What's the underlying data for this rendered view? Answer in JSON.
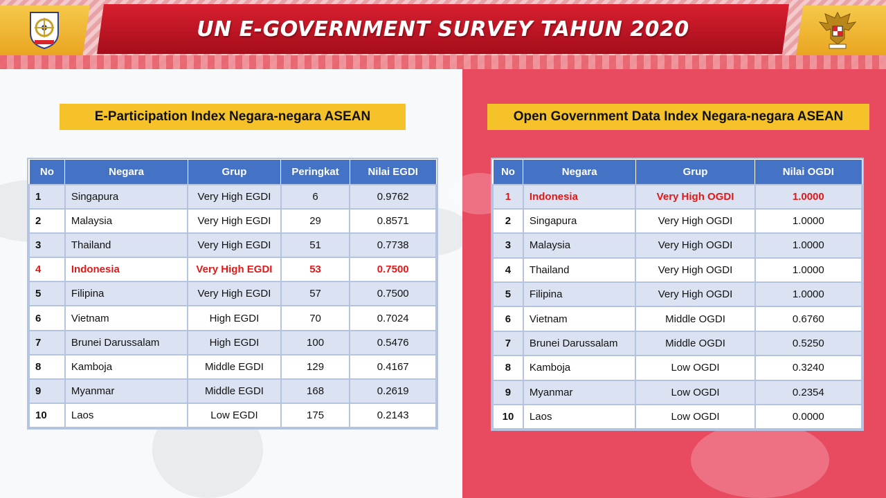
{
  "header": {
    "title": "UN E-GOVERNMENT SURVEY TAHUN 2020",
    "left_logo": "naval-emblem-icon",
    "right_logo": "garuda-emblem-icon",
    "colors": {
      "banner": "#c8142a",
      "gold": "#f6c94a"
    }
  },
  "left": {
    "title": "E-Participation Index Negara-negara ASEAN",
    "columns": [
      "No",
      "Negara",
      "Grup",
      "Peringkat",
      "Nilai EGDI"
    ],
    "highlight_color": "#e01818",
    "rows": [
      {
        "no": "1",
        "country": "Singapura",
        "group": "Very High EGDI",
        "rank": "6",
        "value": "0.9762"
      },
      {
        "no": "2",
        "country": "Malaysia",
        "group": "Very High EGDI",
        "rank": "29",
        "value": "0.8571"
      },
      {
        "no": "3",
        "country": "Thailand",
        "group": "Very High EGDI",
        "rank": "51",
        "value": "0.7738"
      },
      {
        "no": "4",
        "country": "Indonesia",
        "group": "Very High EGDI",
        "rank": "53",
        "value": "0.7500"
      },
      {
        "no": "5",
        "country": "Filipina",
        "group": "Very High EGDI",
        "rank": "57",
        "value": "0.7500"
      },
      {
        "no": "6",
        "country": "Vietnam",
        "group": "High EGDI",
        "rank": "70",
        "value": "0.7024"
      },
      {
        "no": "7",
        "country": "Brunei Darussalam",
        "group": "High EGDI",
        "rank": "100",
        "value": "0.5476"
      },
      {
        "no": "8",
        "country": "Kamboja",
        "group": "Middle EGDI",
        "rank": "129",
        "value": "0.4167"
      },
      {
        "no": "9",
        "country": "Myanmar",
        "group": "Middle EGDI",
        "rank": "168",
        "value": "0.2619"
      },
      {
        "no": "10",
        "country": "Laos",
        "group": "Low EGDI",
        "rank": "175",
        "value": "0.2143"
      }
    ]
  },
  "right": {
    "title": "Open Government Data Index Negara-negara ASEAN",
    "columns": [
      "No",
      "Negara",
      "Grup",
      "Nilai OGDI"
    ],
    "rows": [
      {
        "no": "1",
        "country": "Indonesia",
        "group": "Very High OGDI",
        "value": "1.0000"
      },
      {
        "no": "2",
        "country": "Singapura",
        "group": "Very High OGDI",
        "value": "1.0000"
      },
      {
        "no": "3",
        "country": "Malaysia",
        "group": "Very High OGDI",
        "value": "1.0000"
      },
      {
        "no": "4",
        "country": "Thailand",
        "group": "Very High OGDI",
        "value": "1.0000"
      },
      {
        "no": "5",
        "country": "Filipina",
        "group": "Very High OGDI",
        "value": "1.0000"
      },
      {
        "no": "6",
        "country": "Vietnam",
        "group": "Middle OGDI",
        "value": "0.6760"
      },
      {
        "no": "7",
        "country": "Brunei Darussalam",
        "group": "Middle OGDI",
        "value": "0.5250"
      },
      {
        "no": "8",
        "country": "Kamboja",
        "group": "Low OGDI",
        "value": "0.3240"
      },
      {
        "no": "9",
        "country": "Myanmar",
        "group": "Low OGDI",
        "value": "0.2354"
      },
      {
        "no": "10",
        "country": "Laos",
        "group": "Low OGDI",
        "value": "0.0000"
      }
    ]
  }
}
